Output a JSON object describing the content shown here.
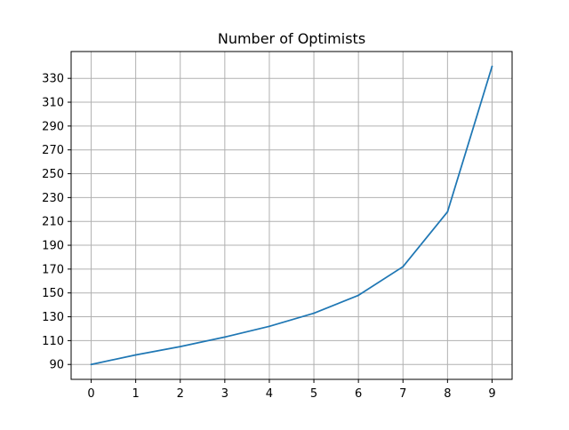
{
  "chart_data": {
    "type": "line",
    "title": "Number of Optimists",
    "xlabel": "",
    "ylabel": "",
    "x": [
      0,
      1,
      2,
      3,
      4,
      5,
      6,
      7,
      8,
      9
    ],
    "series": [
      {
        "values": [
          90,
          98,
          105,
          113,
          122,
          133,
          148,
          172,
          218,
          340
        ]
      }
    ],
    "xlim": [
      -0.45,
      9.45
    ],
    "ylim": [
      77.5,
      352.5
    ],
    "xticks": [
      0,
      1,
      2,
      3,
      4,
      5,
      6,
      7,
      8,
      9
    ],
    "yticks": [
      90,
      110,
      130,
      150,
      170,
      190,
      210,
      230,
      250,
      270,
      290,
      310,
      330
    ],
    "grid": true,
    "colors": {
      "line": "#1f77b4",
      "grid": "#b0b0b0",
      "axes": "#000000",
      "background": "#ffffff"
    }
  }
}
